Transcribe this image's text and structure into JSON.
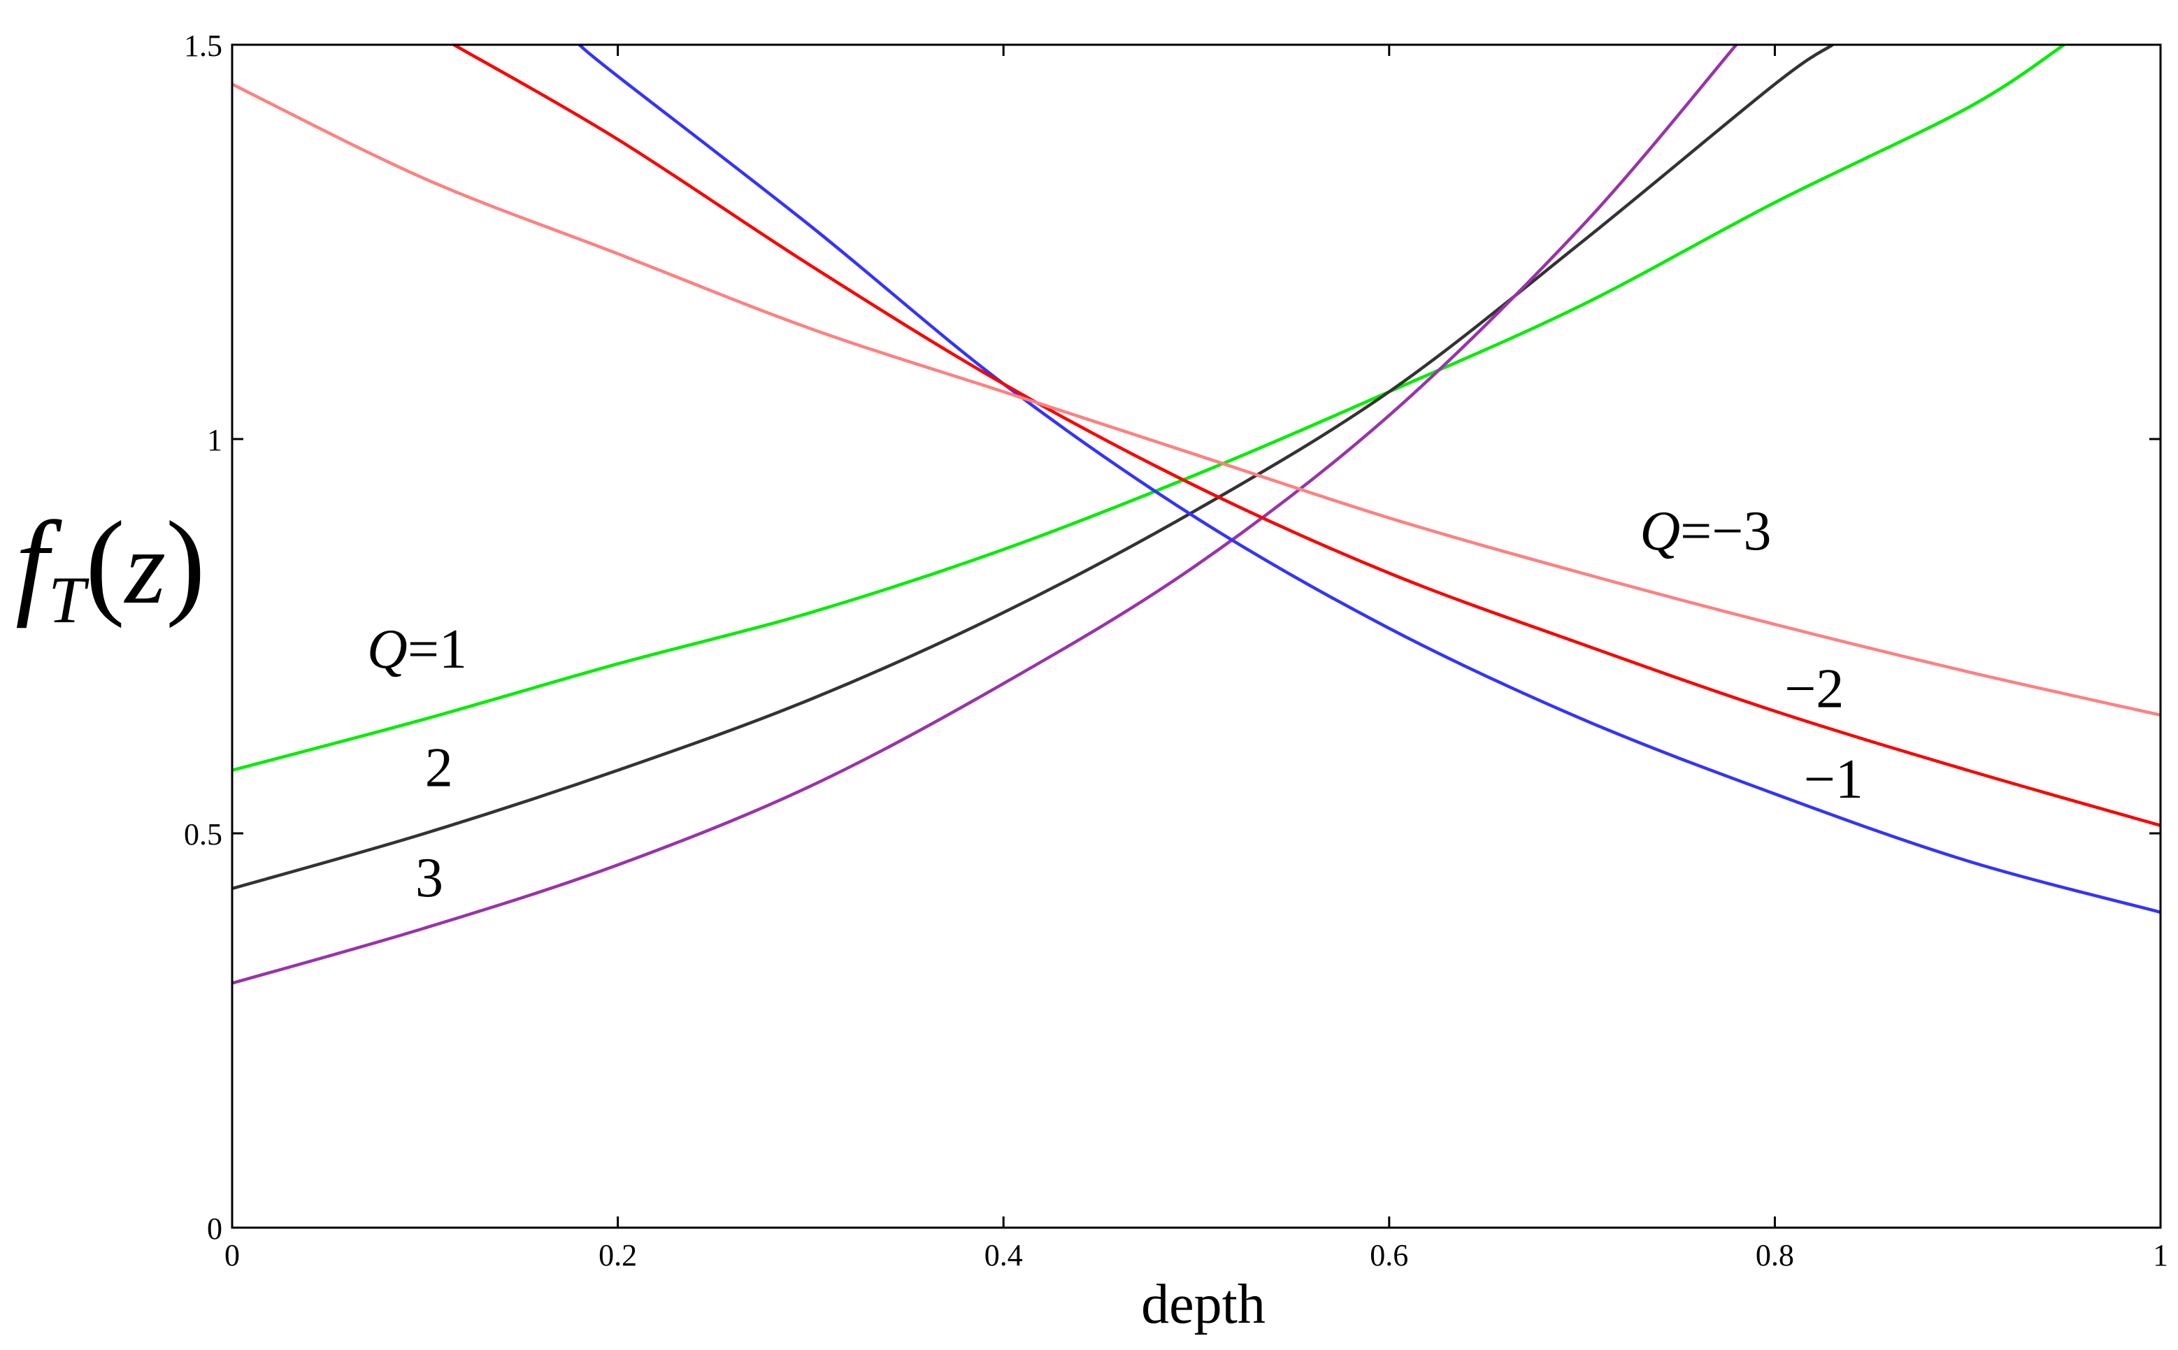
{
  "chart_data": {
    "type": "line",
    "title": "",
    "xlabel": "depth",
    "ylabel": {
      "func": "f",
      "subscript": "T",
      "arg": "z"
    },
    "xlim": [
      0,
      1
    ],
    "ylim": [
      0,
      1.5
    ],
    "xticks": [
      0,
      0.2,
      0.4,
      0.6,
      0.8,
      1
    ],
    "xtick_labels": [
      "0",
      "0.2",
      "0.4",
      "0.6",
      "0.8",
      "1"
    ],
    "yticks": [
      0,
      0.5,
      1,
      1.5
    ],
    "ytick_labels": [
      "0",
      "0.5",
      "1",
      "1.5"
    ],
    "grid": false,
    "series": [
      {
        "name": "Q=1",
        "color": "#00ee00",
        "x": [
          0,
          0.1,
          0.2,
          0.3,
          0.4,
          0.5,
          0.6,
          0.7,
          0.8,
          0.9,
          0.95
        ],
        "y": [
          0.58,
          0.645,
          0.715,
          0.78,
          0.86,
          0.955,
          1.06,
          1.17,
          1.3,
          1.42,
          1.5
        ]
      },
      {
        "name": "Q=2",
        "color": "#333333",
        "x": [
          0,
          0.1,
          0.2,
          0.3,
          0.4,
          0.5,
          0.6,
          0.7,
          0.8,
          0.83
        ],
        "y": [
          0.43,
          0.5,
          0.58,
          0.67,
          0.78,
          0.91,
          1.06,
          1.25,
          1.45,
          1.5
        ]
      },
      {
        "name": "Q=3",
        "color": "#9933aa",
        "x": [
          0,
          0.1,
          0.2,
          0.3,
          0.4,
          0.5,
          0.6,
          0.7,
          0.78
        ],
        "y": [
          0.31,
          0.38,
          0.46,
          0.56,
          0.69,
          0.84,
          1.03,
          1.27,
          1.5
        ]
      },
      {
        "name": "Q=-1",
        "color": "#3333ff",
        "x": [
          0.18,
          0.2,
          0.3,
          0.4,
          0.5,
          0.6,
          0.7,
          0.8,
          0.9,
          1
        ],
        "y": [
          1.5,
          1.46,
          1.27,
          1.07,
          0.9,
          0.76,
          0.645,
          0.55,
          0.465,
          0.4
        ]
      },
      {
        "name": "Q=-2",
        "color": "#ff0000",
        "x": [
          0.115,
          0.2,
          0.3,
          0.4,
          0.5,
          0.6,
          0.7,
          0.8,
          0.9,
          1
        ],
        "y": [
          1.5,
          1.38,
          1.22,
          1.07,
          0.94,
          0.83,
          0.74,
          0.655,
          0.58,
          0.51
        ]
      },
      {
        "name": "Q=-3",
        "color": "#ff8080",
        "x": [
          0,
          0.1,
          0.2,
          0.3,
          0.4,
          0.5,
          0.6,
          0.7,
          0.8,
          0.9,
          1
        ],
        "y": [
          1.45,
          1.33,
          1.235,
          1.14,
          1.06,
          0.98,
          0.9,
          0.83,
          0.765,
          0.705,
          0.65
        ]
      }
    ],
    "annotations": [
      {
        "name": "q1-label",
        "prefix": "Q",
        "text": "=1",
        "x": 0.07,
        "y": 0.71
      },
      {
        "name": "q2-label",
        "prefix": "",
        "text": "2",
        "x": 0.1,
        "y": 0.56
      },
      {
        "name": "q3-label",
        "prefix": "",
        "text": "3",
        "x": 0.095,
        "y": 0.42
      },
      {
        "name": "qm3-label",
        "prefix": "Q",
        "text": "=−3",
        "x": 0.73,
        "y": 0.86
      },
      {
        "name": "qm2-label",
        "prefix": "",
        "text": "−2",
        "x": 0.805,
        "y": 0.66
      },
      {
        "name": "qm1-label",
        "prefix": "",
        "text": "−1",
        "x": 0.815,
        "y": 0.545
      }
    ]
  }
}
